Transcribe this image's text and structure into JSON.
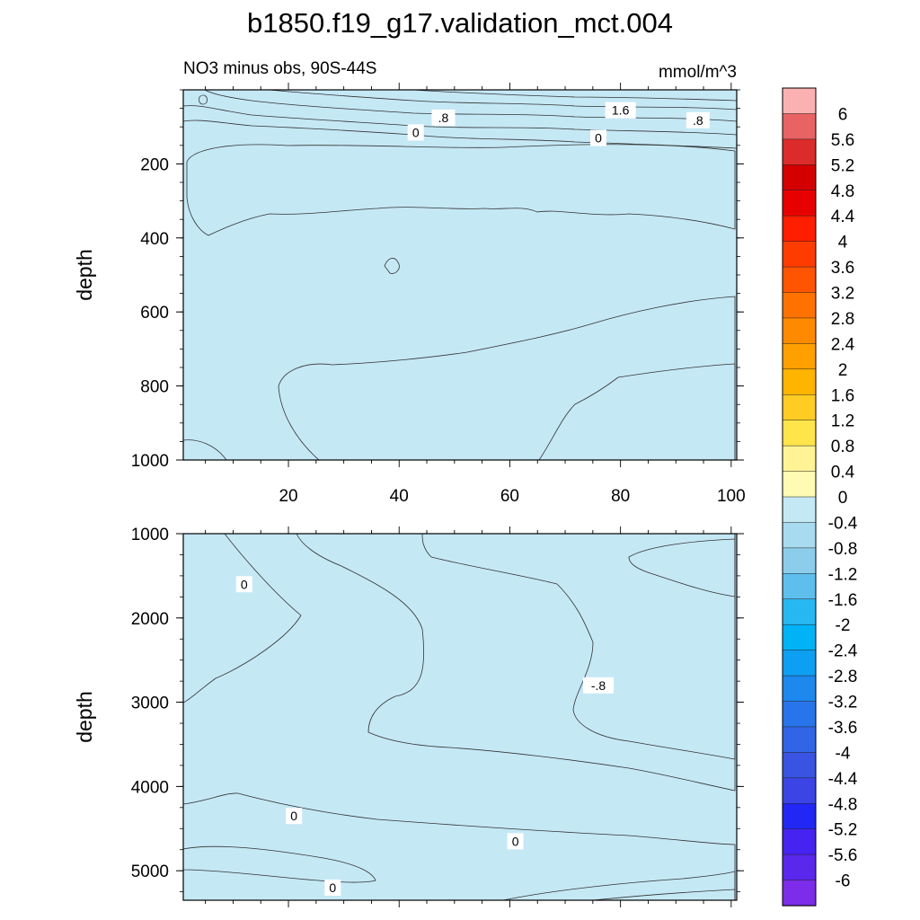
{
  "chart_data": {
    "type": "contour",
    "title": "b1850.f19_g17.validation_mct.004",
    "subtitle_left": "NO3 minus obs, 90S-44S",
    "subtitle_right": "mmol/m^3",
    "colorbar": {
      "levels": [
        "6",
        "5.6",
        "5.2",
        "4.8",
        "4.4",
        "4",
        "3.6",
        "3.2",
        "2.8",
        "2.4",
        "2",
        "1.6",
        "1.2",
        "0.8",
        "0.4",
        "0",
        "-0.4",
        "-0.8",
        "-1.2",
        "-1.6",
        "-2",
        "-2.4",
        "-2.8",
        "-3.2",
        "-3.6",
        "-4",
        "-4.4",
        "-4.8",
        "-5.2",
        "-5.6",
        "-6"
      ],
      "colors": [
        "#fbb1b1",
        "#e86464",
        "#dc2b2b",
        "#d40000",
        "#e80000",
        "#ff1e00",
        "#ff3c00",
        "#ff5400",
        "#ff7200",
        "#ff8a00",
        "#ffa000",
        "#ffb400",
        "#ffcc24",
        "#ffe54a",
        "#fff396",
        "#fffab4",
        "#c5e8f5",
        "#a9dbf0",
        "#8ccdec",
        "#5ebfef",
        "#27b8f2",
        "#00b3f7",
        "#0d9ff2",
        "#1d88ee",
        "#2874ea",
        "#3264e6",
        "#3954e2",
        "#3c44e6",
        "#2327f5",
        "#4623f0",
        "#5a28ed",
        "#7d2cea"
      ]
    },
    "panels": [
      {
        "name": "upper",
        "ylabel": "depth",
        "ylim": [
          0,
          1000
        ],
        "y_inverted": true,
        "yticks": [
          200,
          400,
          600,
          800,
          1000
        ],
        "xlim": [
          1,
          101
        ],
        "xticks": [
          20,
          40,
          60,
          80,
          100
        ],
        "contour_labels": [
          {
            "text": ".8",
            "x": 48,
            "y": 75
          },
          {
            "text": "1.6",
            "x": 80,
            "y": 55
          },
          {
            "text": ".8",
            "x": 94,
            "y": 82
          },
          {
            "text": "0",
            "x": 43,
            "y": 115
          },
          {
            "text": "0",
            "x": 76,
            "y": 130
          }
        ]
      },
      {
        "name": "lower",
        "ylabel": "depth",
        "ylim": [
          1000,
          5350
        ],
        "y_inverted": true,
        "yticks": [
          1000,
          2000,
          3000,
          4000,
          5000
        ],
        "xlim": [
          1,
          101
        ],
        "contour_labels": [
          {
            "text": "0",
            "x": 12,
            "y": 1600
          },
          {
            "text": "-.8",
            "x": 76,
            "y": 2800
          },
          {
            "text": "0",
            "x": 21,
            "y": 4350
          },
          {
            "text": "0",
            "x": 61,
            "y": 4650
          },
          {
            "text": "0",
            "x": 28,
            "y": 5200
          }
        ]
      }
    ]
  }
}
